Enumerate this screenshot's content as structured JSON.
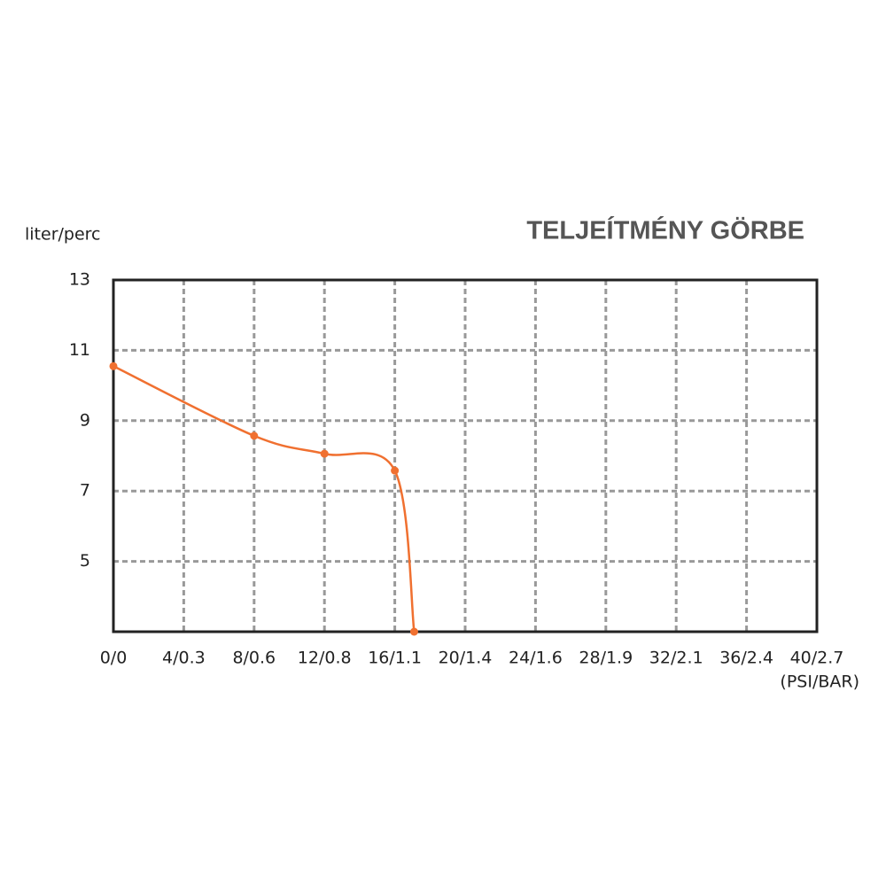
{
  "chart_data": {
    "type": "line",
    "title": "TELJEÍTMÉNY GÖRBE",
    "y_label": "liter/perc",
    "x_label": "(PSI/BAR)",
    "x": [
      0,
      8,
      12,
      16,
      17.1
    ],
    "series": [
      {
        "name": null,
        "color": "#f07030",
        "values": [
          10.55,
          8.57,
          8.06,
          7.58,
          3
        ]
      }
    ],
    "xlim": [
      0,
      40
    ],
    "xticks": [
      {
        "value": 0,
        "label": "0/0"
      },
      {
        "value": 4,
        "label": "4/0.3"
      },
      {
        "value": 8,
        "label": "8/0.6"
      },
      {
        "value": 12,
        "label": "12/0.8"
      },
      {
        "value": 16,
        "label": "16/1.1"
      },
      {
        "value": 20,
        "label": "20/1.4"
      },
      {
        "value": 24,
        "label": "24/1.6"
      },
      {
        "value": 28,
        "label": "28/1.9"
      },
      {
        "value": 32,
        "label": "32/2.1"
      },
      {
        "value": 36,
        "label": "36/2.4"
      },
      {
        "value": 40,
        "label": "40/2.7"
      }
    ],
    "ylim": [
      3,
      13
    ],
    "yticks": [
      5,
      7,
      9,
      11,
      13
    ],
    "grid": true
  }
}
